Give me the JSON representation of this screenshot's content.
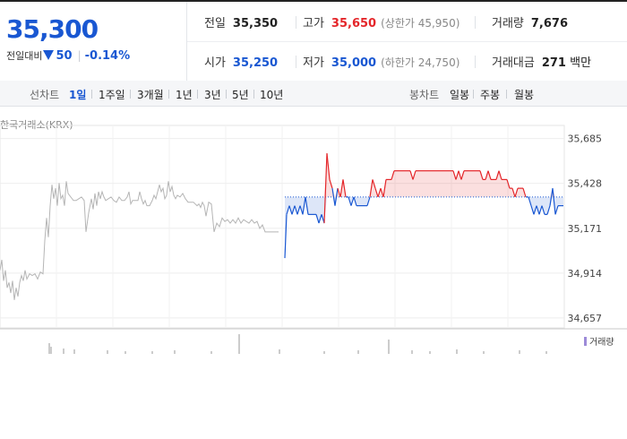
{
  "summary": {
    "price": "35,300",
    "change_label": "전일대비",
    "change_amount": "50",
    "change_rate": "-0.14%",
    "prev_close_label": "전일",
    "prev_close": "35,350",
    "open_label": "시가",
    "open": "35,250",
    "high_label": "고가",
    "high": "35,650",
    "upper_limit": "(상한가 45,950)",
    "low_label": "저가",
    "low": "35,000",
    "lower_limit": "(하한가 24,750)",
    "volume_label": "거래량",
    "volume": "7,676",
    "value_label": "거래대금",
    "value": "271",
    "value_unit": "백만"
  },
  "period": {
    "label": "선차트",
    "tabs": [
      "1일",
      "1주일",
      "3개월",
      "1년",
      "3년",
      "5년",
      "10년"
    ],
    "active": "1일",
    "candle_label": "봉차트",
    "candle_tabs": [
      "일봉",
      "주봉",
      "월봉"
    ]
  },
  "market": "한국거래소(KRX)",
  "volume_legend": "거래량",
  "colors": {
    "up": "#e4262a",
    "down": "#1957d2",
    "prev_day": "#b5b5b5",
    "volume": "#9d8bd8",
    "ref_line": "#1957d2"
  },
  "chart_data": {
    "type": "line",
    "ylim": [
      34600,
      35760
    ],
    "yticks": [
      "35,685",
      "35,428",
      "35,171",
      "34,914",
      "34,657"
    ],
    "grid": true,
    "reference_price": 35350,
    "series": [
      {
        "points": [
          [
            0,
            34930
          ],
          [
            2,
            34990
          ],
          [
            4,
            34870
          ],
          [
            6,
            34930
          ],
          [
            8,
            34830
          ],
          [
            10,
            34860
          ],
          [
            12,
            34800
          ],
          [
            14,
            34870
          ],
          [
            16,
            34760
          ],
          [
            18,
            34830
          ],
          [
            20,
            34780
          ],
          [
            22,
            34860
          ],
          [
            24,
            34900
          ],
          [
            26,
            34870
          ],
          [
            28,
            34930
          ],
          [
            30,
            34880
          ],
          [
            33,
            34910
          ],
          [
            36,
            34900
          ],
          [
            39,
            34910
          ],
          [
            42,
            34880
          ],
          [
            45,
            34920
          ],
          [
            48,
            34910
          ],
          [
            50,
            35100
          ],
          [
            52,
            35230
          ],
          [
            54,
            35120
          ],
          [
            56,
            35300
          ],
          [
            58,
            35420
          ],
          [
            60,
            35340
          ],
          [
            62,
            35400
          ],
          [
            64,
            35300
          ],
          [
            66,
            35430
          ],
          [
            68,
            35340
          ],
          [
            70,
            35360
          ],
          [
            72,
            35300
          ],
          [
            74,
            35440
          ],
          [
            76,
            35370
          ],
          [
            79,
            35350
          ],
          [
            82,
            35330
          ],
          [
            85,
            35330
          ],
          [
            88,
            35340
          ],
          [
            91,
            35350
          ],
          [
            94,
            35330
          ],
          [
            96,
            35150
          ],
          [
            99,
            35260
          ],
          [
            102,
            35340
          ],
          [
            104,
            35280
          ],
          [
            106,
            35370
          ],
          [
            108,
            35300
          ],
          [
            110,
            35380
          ],
          [
            112,
            35340
          ],
          [
            114,
            35380
          ],
          [
            116,
            35350
          ],
          [
            118,
            35330
          ],
          [
            121,
            35340
          ],
          [
            124,
            35350
          ],
          [
            127,
            35330
          ],
          [
            130,
            35320
          ],
          [
            133,
            35350
          ],
          [
            136,
            35330
          ],
          [
            139,
            35330
          ],
          [
            142,
            35350
          ],
          [
            144,
            35380
          ],
          [
            146,
            35310
          ],
          [
            148,
            35330
          ],
          [
            150,
            35330
          ],
          [
            152,
            35330
          ],
          [
            154,
            35330
          ],
          [
            156,
            35380
          ],
          [
            158,
            35340
          ],
          [
            160,
            35310
          ],
          [
            162,
            35330
          ],
          [
            164,
            35300
          ],
          [
            167,
            35300
          ],
          [
            170,
            35330
          ],
          [
            172,
            35360
          ],
          [
            174,
            35340
          ],
          [
            176,
            35380
          ],
          [
            178,
            35420
          ],
          [
            180,
            35380
          ],
          [
            182,
            35400
          ],
          [
            184,
            35340
          ],
          [
            186,
            35360
          ],
          [
            188,
            35440
          ],
          [
            190,
            35380
          ],
          [
            192,
            35410
          ],
          [
            194,
            35360
          ],
          [
            196,
            35340
          ],
          [
            198,
            35360
          ],
          [
            201,
            35350
          ],
          [
            204,
            35370
          ],
          [
            207,
            35340
          ],
          [
            210,
            35320
          ],
          [
            212,
            35320
          ],
          [
            214,
            35320
          ],
          [
            216,
            35320
          ],
          [
            218,
            35310
          ],
          [
            220,
            35300
          ],
          [
            222,
            35310
          ],
          [
            224,
            35290
          ],
          [
            226,
            35320
          ],
          [
            228,
            35300
          ],
          [
            230,
            35240
          ],
          [
            233,
            35320
          ],
          [
            236,
            35310
          ],
          [
            239,
            35150
          ],
          [
            242,
            35200
          ],
          [
            245,
            35180
          ],
          [
            248,
            35230
          ],
          [
            251,
            35210
          ],
          [
            254,
            35220
          ],
          [
            257,
            35200
          ],
          [
            260,
            35220
          ],
          [
            263,
            35200
          ],
          [
            266,
            35230
          ],
          [
            269,
            35200
          ],
          [
            272,
            35220
          ],
          [
            275,
            35210
          ],
          [
            278,
            35200
          ],
          [
            281,
            35220
          ],
          [
            284,
            35200
          ],
          [
            287,
            35210
          ],
          [
            290,
            35170
          ],
          [
            293,
            35190
          ],
          [
            296,
            35150
          ],
          [
            299,
            35150
          ],
          [
            302,
            35150
          ],
          [
            305,
            35150
          ],
          [
            308,
            35150
          ],
          [
            311,
            35150
          ]
        ]
      },
      {
        "points": [
          [
            318,
            35000
          ],
          [
            320,
            35250
          ],
          [
            323,
            35300
          ],
          [
            326,
            35250
          ],
          [
            329,
            35300
          ],
          [
            332,
            35250
          ],
          [
            335,
            35300
          ],
          [
            338,
            35250
          ],
          [
            341,
            35350
          ],
          [
            344,
            35250
          ],
          [
            347,
            35250
          ],
          [
            350,
            35250
          ],
          [
            353,
            35250
          ],
          [
            356,
            35200
          ],
          [
            359,
            35250
          ],
          [
            362,
            35200
          ],
          [
            365,
            35600
          ],
          [
            368,
            35450
          ],
          [
            371,
            35400
          ],
          [
            374,
            35300
          ],
          [
            377,
            35400
          ],
          [
            380,
            35350
          ],
          [
            383,
            35450
          ],
          [
            386,
            35350
          ],
          [
            389,
            35350
          ],
          [
            392,
            35300
          ],
          [
            395,
            35350
          ],
          [
            398,
            35300
          ],
          [
            401,
            35300
          ],
          [
            404,
            35300
          ],
          [
            407,
            35300
          ],
          [
            410,
            35300
          ],
          [
            413,
            35350
          ],
          [
            416,
            35450
          ],
          [
            419,
            35400
          ],
          [
            422,
            35350
          ],
          [
            425,
            35400
          ],
          [
            428,
            35350
          ],
          [
            431,
            35450
          ],
          [
            434,
            35450
          ],
          [
            437,
            35450
          ],
          [
            440,
            35500
          ],
          [
            443,
            35500
          ],
          [
            446,
            35500
          ],
          [
            449,
            35500
          ],
          [
            452,
            35500
          ],
          [
            455,
            35500
          ],
          [
            458,
            35500
          ],
          [
            461,
            35450
          ],
          [
            464,
            35500
          ],
          [
            467,
            35500
          ],
          [
            470,
            35500
          ],
          [
            473,
            35500
          ],
          [
            476,
            35500
          ],
          [
            479,
            35500
          ],
          [
            482,
            35500
          ],
          [
            485,
            35500
          ],
          [
            488,
            35500
          ],
          [
            491,
            35500
          ],
          [
            494,
            35500
          ],
          [
            497,
            35500
          ],
          [
            500,
            35500
          ],
          [
            503,
            35500
          ],
          [
            506,
            35500
          ],
          [
            509,
            35450
          ],
          [
            512,
            35500
          ],
          [
            515,
            35450
          ],
          [
            518,
            35500
          ],
          [
            521,
            35500
          ],
          [
            524,
            35500
          ],
          [
            527,
            35500
          ],
          [
            530,
            35500
          ],
          [
            533,
            35500
          ],
          [
            536,
            35500
          ],
          [
            539,
            35450
          ],
          [
            542,
            35450
          ],
          [
            545,
            35500
          ],
          [
            548,
            35450
          ],
          [
            551,
            35450
          ],
          [
            554,
            35450
          ],
          [
            557,
            35500
          ],
          [
            560,
            35450
          ],
          [
            563,
            35450
          ],
          [
            566,
            35450
          ],
          [
            569,
            35400
          ],
          [
            572,
            35400
          ],
          [
            575,
            35350
          ],
          [
            578,
            35400
          ],
          [
            581,
            35400
          ],
          [
            584,
            35400
          ],
          [
            587,
            35350
          ],
          [
            590,
            35350
          ],
          [
            593,
            35300
          ],
          [
            596,
            35250
          ],
          [
            599,
            35300
          ],
          [
            602,
            35250
          ],
          [
            605,
            35300
          ],
          [
            608,
            35250
          ],
          [
            611,
            35250
          ],
          [
            614,
            35300
          ],
          [
            617,
            35400
          ],
          [
            620,
            35250
          ],
          [
            623,
            35300
          ],
          [
            626,
            35300
          ],
          [
            629,
            35300
          ]
        ]
      }
    ]
  }
}
